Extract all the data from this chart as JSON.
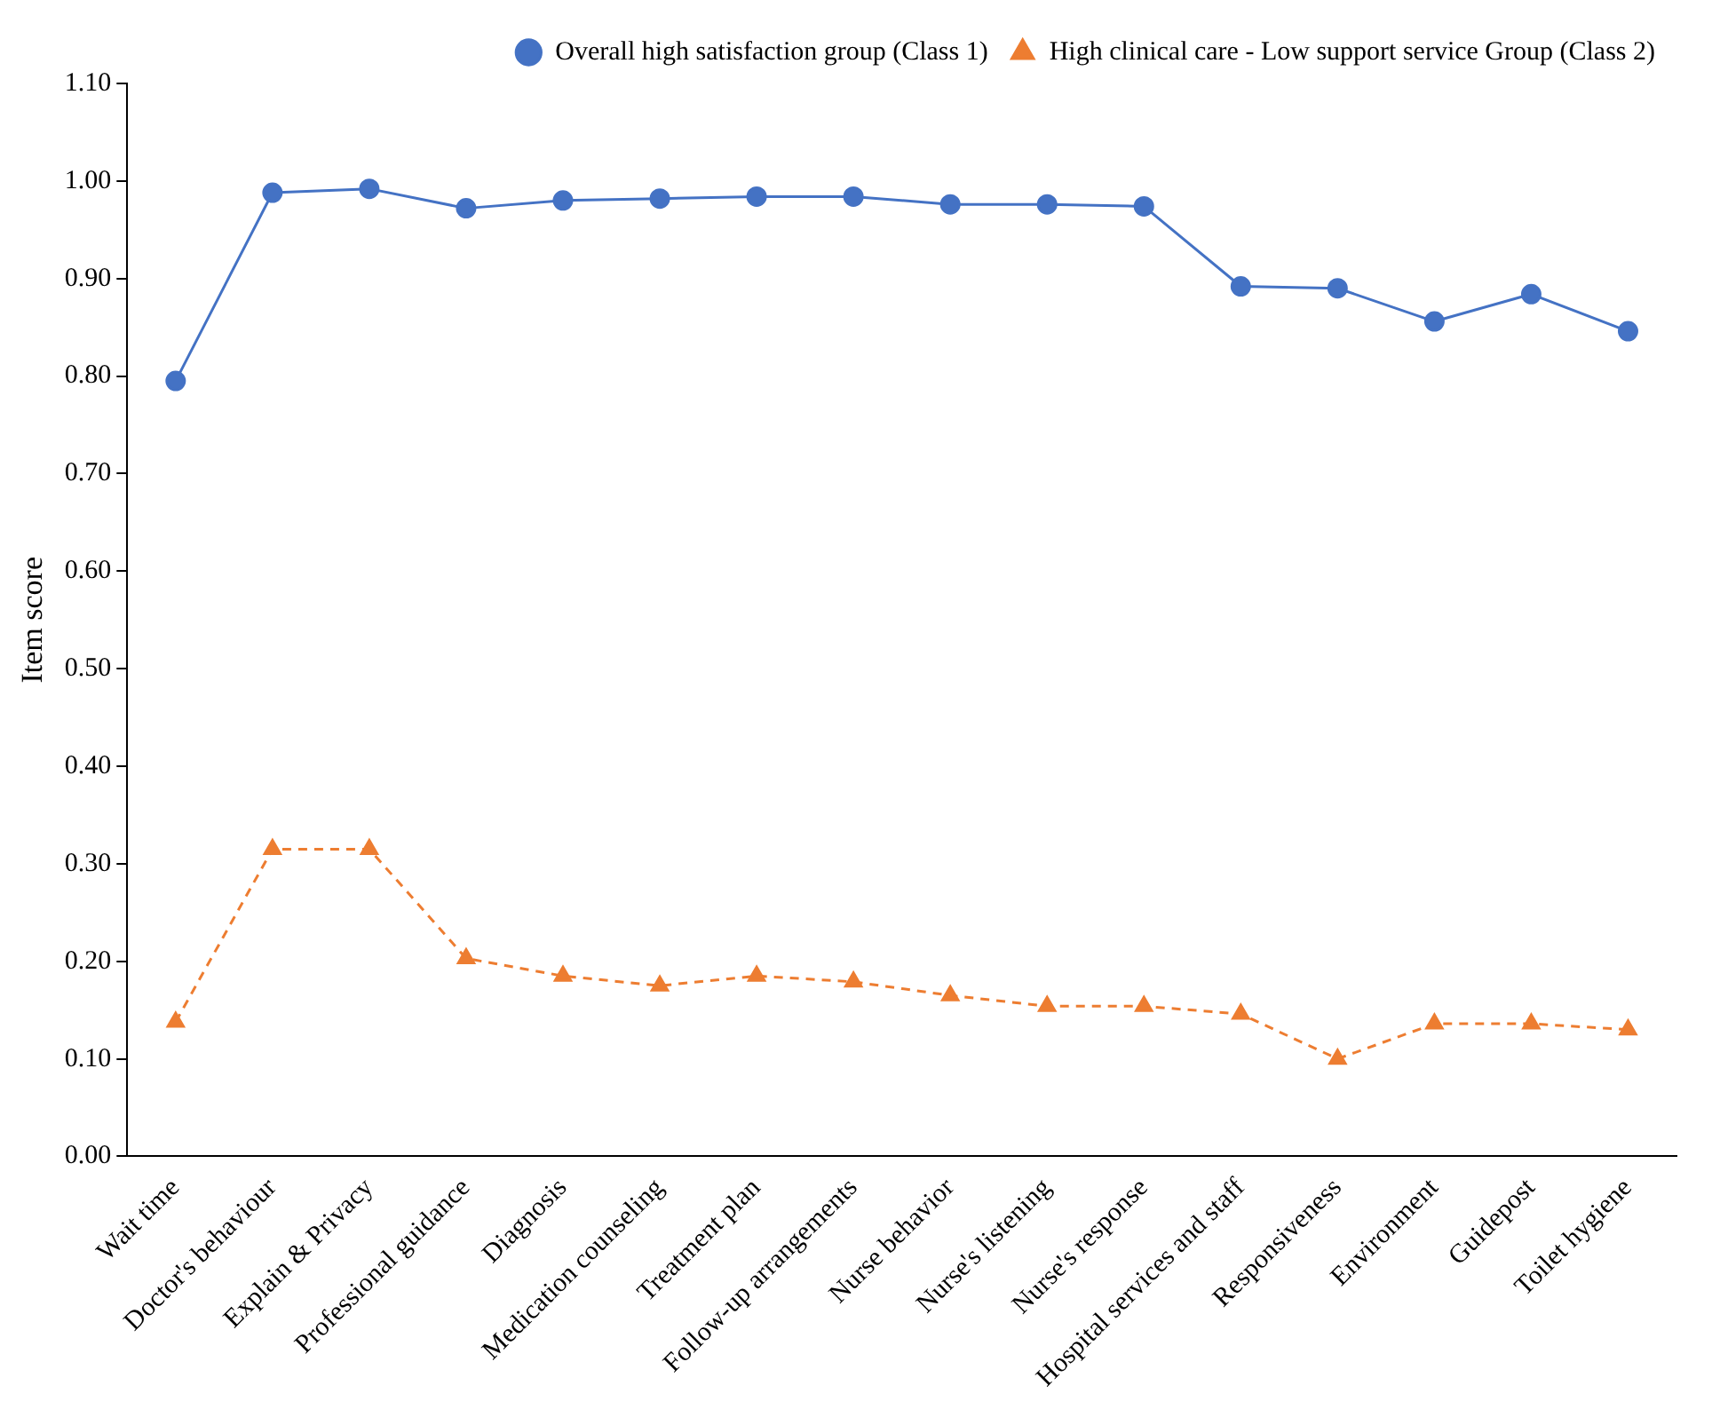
{
  "chart_data": {
    "type": "line",
    "ylabel": "Item score",
    "categories": [
      "Wait time",
      "Doctor's behaviour",
      "Explain & Privacy",
      "Professional guidance",
      "Diagnosis",
      "Medication counseling",
      "Treatment plan",
      "Follow-up arrangements",
      "Nurse behavior",
      "Nurse's listening",
      "Nurse's response",
      "Hospital services and staff",
      "Responsiveness",
      "Environment",
      "Guidepost",
      "Toilet hygiene"
    ],
    "series": [
      {
        "name": "Overall high satisfaction group (Class 1)",
        "color": "#4472c4",
        "marker": "circle",
        "line_style": "solid",
        "values": [
          0.795,
          0.988,
          0.992,
          0.972,
          0.98,
          0.982,
          0.984,
          0.984,
          0.976,
          0.976,
          0.974,
          0.892,
          0.89,
          0.856,
          0.884,
          0.846
        ]
      },
      {
        "name": "High clinical care - Low support service Group (Class 2)",
        "color": "#ed7d31",
        "marker": "triangle",
        "line_style": "dashed",
        "values": [
          0.138,
          0.315,
          0.315,
          0.203,
          0.185,
          0.175,
          0.185,
          0.179,
          0.165,
          0.154,
          0.154,
          0.146,
          0.1,
          0.136,
          0.136,
          0.13
        ]
      }
    ],
    "ylim": [
      0,
      1.1
    ],
    "yticks": [
      {
        "value": 0,
        "label": "0.00"
      },
      {
        "value": 0.1,
        "label": "0.10"
      },
      {
        "value": 0.2,
        "label": "0.20"
      },
      {
        "value": 0.3,
        "label": "0.30"
      },
      {
        "value": 0.4,
        "label": "0.40"
      },
      {
        "value": 0.5,
        "label": "0.50"
      },
      {
        "value": 0.6,
        "label": "0.60"
      },
      {
        "value": 0.7,
        "label": "0.70"
      },
      {
        "value": 0.8,
        "label": "0.80"
      },
      {
        "value": 0.9,
        "label": "0.90"
      },
      {
        "value": 1,
        "label": "1.00"
      },
      {
        "value": 1.1,
        "label": "1.10"
      }
    ],
    "grid": false,
    "legend": "top right"
  }
}
